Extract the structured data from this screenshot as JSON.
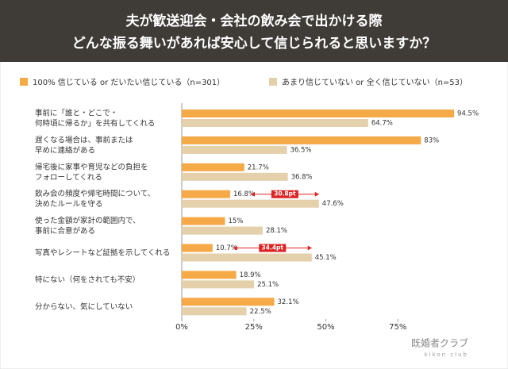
{
  "chart_data": {
    "type": "hbar",
    "title": [
      "夫が歓送迎会・会社の飲み会で出かける際",
      "どんな振る舞いがあれば安心して信じられると思いますか？"
    ],
    "categories": [
      "事前に「誰と・どこで・\n何時頃に帰るか」を共有してくれる",
      "遅くなる場合は、事前または\n早めに連絡がある",
      "帰宅後に家事や育児などの負担を\nフォローしてくれる",
      "飲み会の頻度や帰宅時間について、\n決めたルールを守る",
      "使った金額が家計の範囲内で、\n事前に合意がある",
      "写真やレシートなど証拠を示してくれる",
      "特にない（何をされても不安）",
      "分からない、気にしていない"
    ],
    "series": [
      {
        "name": "100% 信じている or だいたい信じている（n=301）",
        "color": "#f5a947",
        "values": [
          94.5,
          83,
          21.7,
          16.8,
          15,
          10.7,
          18.9,
          32.1
        ],
        "value_labels": [
          "94.5%",
          "83%",
          "21.7%",
          "16.8%",
          "15%",
          "10.7%",
          "18.9%",
          "32.1%"
        ]
      },
      {
        "name": "あまり信じていない or 全く信じていない（n=53）",
        "color": "#e4d0aa",
        "values": [
          64.7,
          36.5,
          36.8,
          47.6,
          28.1,
          45.1,
          25.1,
          22.5
        ],
        "value_labels": [
          "64.7%",
          "36.5%",
          "36.8%",
          "47.6%",
          "28.1%",
          "45.1%",
          "25.1%",
          "22.5%"
        ]
      }
    ],
    "annotations": [
      {
        "text": "30.8pt",
        "value": 30.8
      },
      {
        "text": "34.4pt",
        "value": 34.4
      }
    ],
    "xlim": [
      0,
      100
    ],
    "xticks": [
      {
        "value": 0,
        "label": "0%"
      },
      {
        "value": 25,
        "label": "25%"
      },
      {
        "value": 50,
        "label": "50%"
      },
      {
        "value": 75,
        "label": "75%"
      }
    ],
    "logo": [
      "既婚者クラブ",
      "kikon club"
    ]
  }
}
